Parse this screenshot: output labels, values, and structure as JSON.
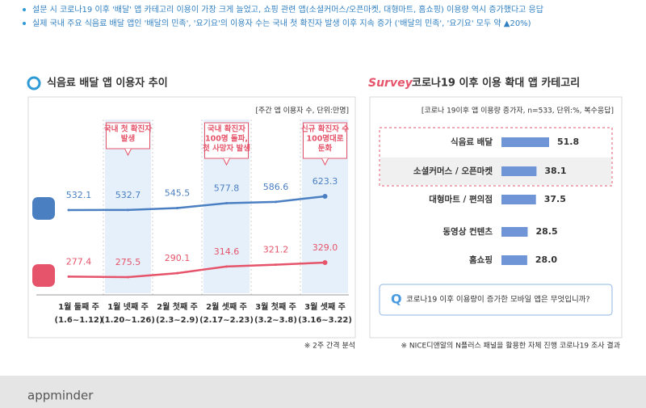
{
  "notes": [
    "설문 시 코로나19 이후 '배달' 앱 카테고리 이용이 가장 크게 늘었고, 쇼핑 관련 앱(소셜커머스/오픈마켓, 대형마트, 홈쇼핑) 이용량 역시 증가했다고 응답",
    "실제 국내 주요 식음료 배달 앱인 '배달의 민족', '요기요'의 이용자 수는 국내 첫 확진자 발생 이후 지속 증가 ('배달의 민족', '요기요' 모두 약 ▲20%)"
  ],
  "survey_badge": "Survey",
  "logo": "appminder",
  "chart_data": [
    {
      "type": "line",
      "title": "식음료 배달 앱 이용자 추이",
      "subtitle": "[주간 앱 이용자 수, 단위:만명]",
      "categories": [
        "1월 둘째 주",
        "1월 넷째 주",
        "2월 첫째 주",
        "2월 셋째 주",
        "3월 첫째 주",
        "3월 셋째 주"
      ],
      "category_periods": [
        "(1.6~1.12)",
        "(1.20~1.26)",
        "(2.3~2.9)",
        "(2.17~2.23)",
        "(3.2~3.8)",
        "(3.16~3.22)"
      ],
      "series": [
        {
          "color": "#4a7fc1",
          "values": [
            532.1,
            532.7,
            545.5,
            577.8,
            586.6,
            623.3
          ],
          "value_labels": [
            "532.1",
            "532.7",
            "545.5",
            "577.8",
            "586.6",
            "623.3"
          ]
        },
        {
          "color": "#e5546a",
          "values": [
            277.4,
            275.5,
            290.1,
            314.6,
            321.2,
            329.0
          ],
          "value_labels": [
            "277.4",
            "275.5",
            "290.1",
            "314.6",
            "321.2",
            "329.0"
          ]
        }
      ],
      "annotations": [
        {
          "lines": [
            "국내 첫 확진자",
            "발생"
          ]
        },
        {
          "lines": [
            "국내 확진자",
            "100명 돌파,",
            "첫 사망자 발생"
          ]
        },
        {
          "lines": [
            "신규 확진자 수",
            "100명대로",
            "둔화"
          ]
        }
      ],
      "note": "※ 2주 간격 분석"
    },
    {
      "type": "bar",
      "orientation": "horizontal",
      "title": "코로나19 이후 이용 확대 앱 카테고리",
      "subtitle": "[코로나 19이후 앱 이용량 증가자, n=533, 단위:%, 복수응답]",
      "categories": [
        "식음료 배달",
        "소셜커머스 / 오픈마켓",
        "대형마트 / 편의점",
        "동영상 컨텐츠",
        "홈쇼핑"
      ],
      "values": [
        51.8,
        38.1,
        37.5,
        28.5,
        28.0
      ],
      "value_labels": [
        "51.8",
        "38.1",
        "37.5",
        "28.5",
        "28.0"
      ],
      "color": "#6f95d6",
      "question": "코로나19 이후 이용량이 증가한 모바일 앱은 무엇입니까?",
      "source": "※ NICE디앤알의 N플러스 패널을 활용한 자체 진행 코로나19 조사 결과"
    }
  ]
}
